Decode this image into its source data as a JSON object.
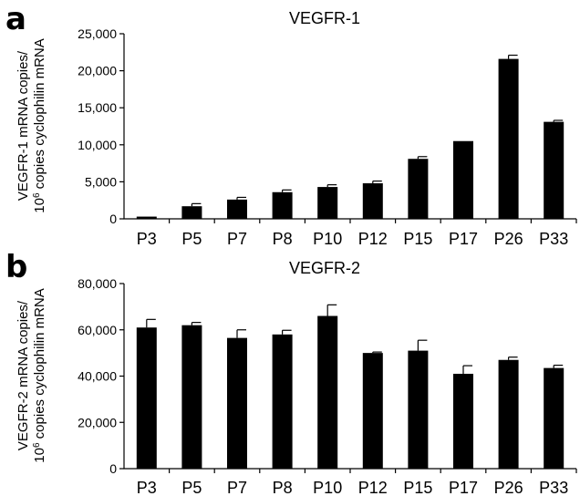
{
  "chart_data": [
    {
      "type": "bar",
      "panel": "a",
      "title": "VEGFR-1",
      "ylabel_line1": "VEGFR-1 mRNA copies/",
      "ylabel_line2_pre": "10",
      "ylabel_line2_sup": "6",
      "ylabel_line2_post": " copies cyclophilin mRNA",
      "categories": [
        "P3",
        "P5",
        "P7",
        "P8",
        "P10",
        "P12",
        "P15",
        "P17",
        "P26",
        "P33"
      ],
      "values": [
        300,
        1700,
        2600,
        3600,
        4300,
        4800,
        8100,
        10500,
        21600,
        13100
      ],
      "errors": [
        0,
        350,
        300,
        300,
        300,
        300,
        300,
        0,
        500,
        200
      ],
      "ylim": [
        0,
        25000
      ],
      "yticks": [
        0,
        5000,
        10000,
        15000,
        20000,
        25000
      ],
      "ytick_labels": [
        "0",
        "5,000",
        "10,000",
        "15,000",
        "20,000",
        "25,000"
      ],
      "color": "#000000"
    },
    {
      "type": "bar",
      "panel": "b",
      "title": "VEGFR-2",
      "ylabel_line1": "VEGFR-2 mRNA copies/",
      "ylabel_line2_pre": "10",
      "ylabel_line2_sup": "6",
      "ylabel_line2_post": " copies cyclophilin mRNA",
      "categories": [
        "P3",
        "P5",
        "P7",
        "P8",
        "P10",
        "P12",
        "P15",
        "P17",
        "P26",
        "P33"
      ],
      "values": [
        61000,
        62000,
        56500,
        58000,
        66000,
        50000,
        51000,
        41000,
        47000,
        43500
      ],
      "errors": [
        3500,
        1200,
        3500,
        1800,
        4800,
        400,
        4500,
        3500,
        1200,
        1200
      ],
      "ylim": [
        0,
        80000
      ],
      "yticks": [
        0,
        20000,
        40000,
        60000,
        80000
      ],
      "ytick_labels": [
        "0",
        "20,000",
        "40,000",
        "60,000",
        "80,000"
      ],
      "color": "#000000"
    }
  ]
}
